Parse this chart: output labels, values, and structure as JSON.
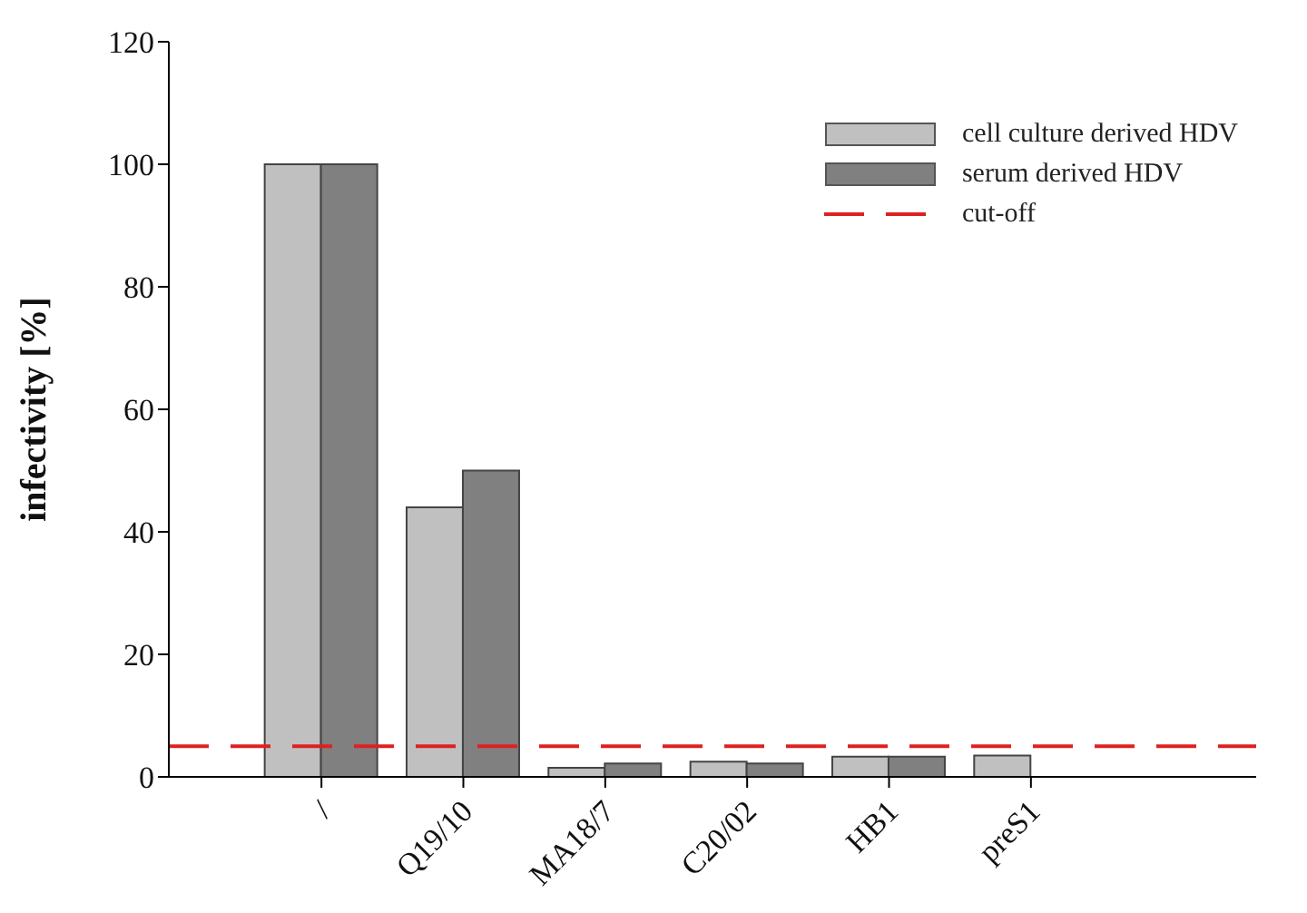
{
  "chart_data": {
    "type": "bar",
    "ylabel": "infectivity [%]",
    "categories": [
      "/",
      "Q19/10",
      "MA18/7",
      "C20/02",
      "HB1",
      "preS1"
    ],
    "series": [
      {
        "name": "cell culture derived HDV",
        "color": "#c0c0c0",
        "values": [
          100,
          44,
          1.5,
          2.5,
          3.3,
          3.5
        ]
      },
      {
        "name": "serum derived HDV",
        "color": "#808080",
        "values": [
          100,
          50,
          2.2,
          2.2,
          3.3,
          null
        ]
      }
    ],
    "ylim": [
      0,
      120
    ],
    "yticks": [
      0,
      20,
      40,
      60,
      80,
      100,
      120
    ],
    "grid": false,
    "legend": "top right",
    "ref_lines": [
      {
        "axis": "y",
        "value": 5,
        "label": "cut-off",
        "color": "#e02020",
        "line_style": "dashed"
      }
    ]
  }
}
